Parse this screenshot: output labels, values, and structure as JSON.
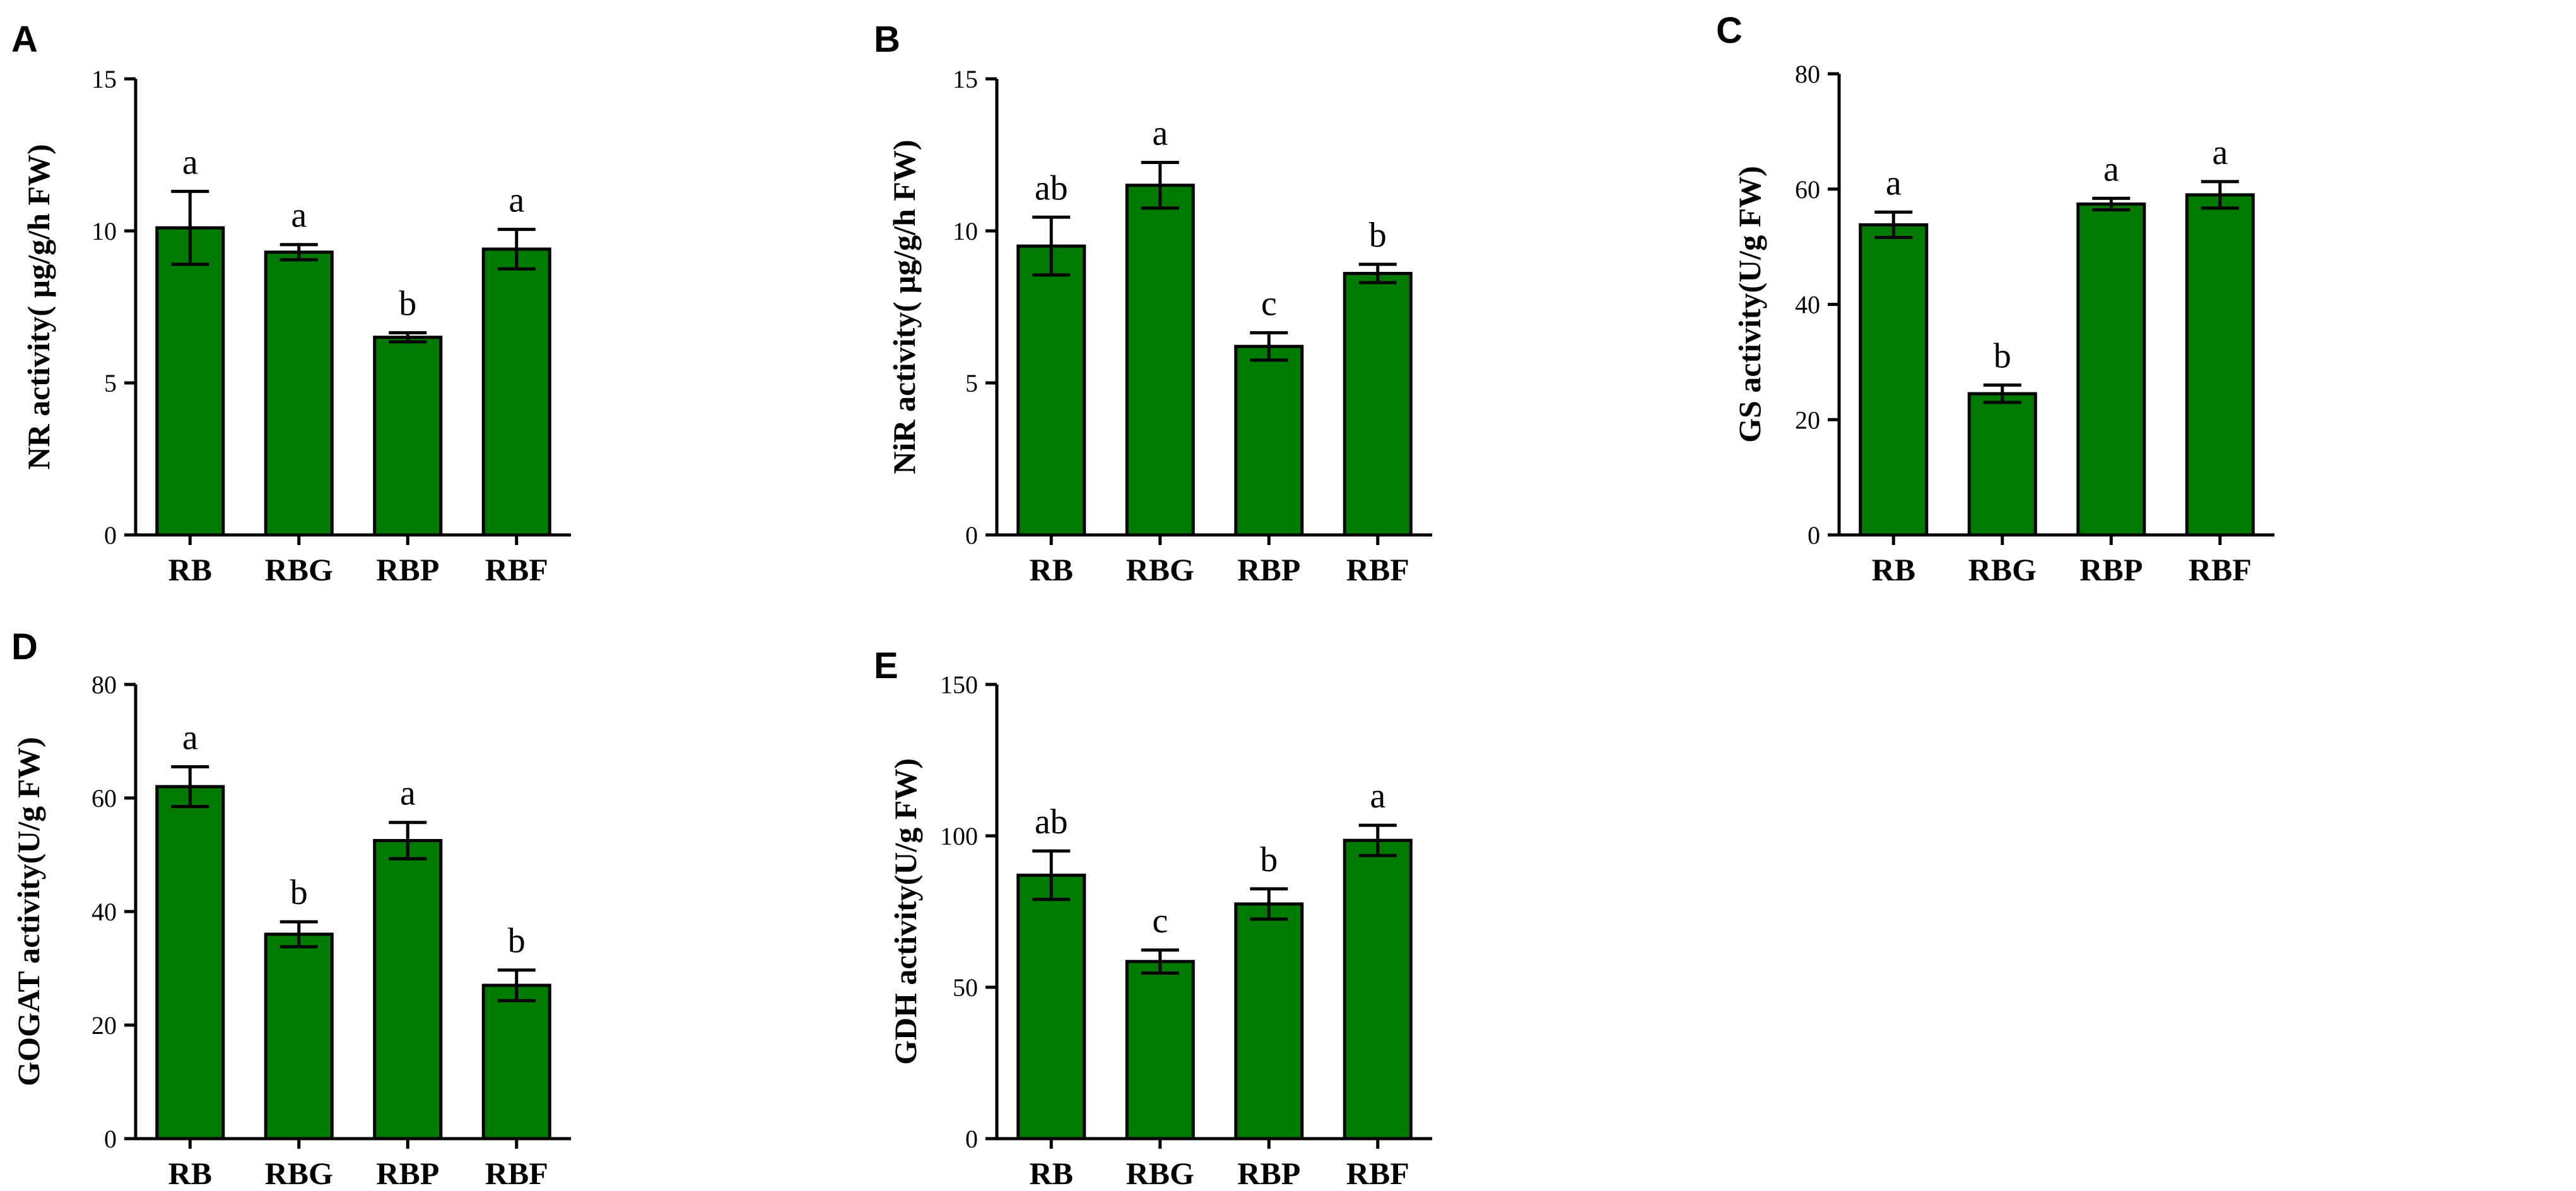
{
  "chart_data": [
    {
      "panel": "A",
      "type": "bar",
      "categories": [
        "RB",
        "RBG",
        "RBP",
        "RBF"
      ],
      "values": [
        10.1,
        9.3,
        6.5,
        9.4
      ],
      "errors": [
        1.2,
        0.25,
        0.15,
        0.65
      ],
      "significance": [
        "a",
        "a",
        "b",
        "a"
      ],
      "ylabel": "NR activity( µg/g/h FW)",
      "ylim": [
        0,
        15
      ],
      "yticks": [
        0,
        5,
        10,
        15
      ],
      "color": "#007a00"
    },
    {
      "panel": "B",
      "type": "bar",
      "categories": [
        "RB",
        "RBG",
        "RBP",
        "RBF"
      ],
      "values": [
        9.5,
        11.5,
        6.2,
        8.6
      ],
      "errors": [
        0.95,
        0.75,
        0.45,
        0.3
      ],
      "significance": [
        "ab",
        "a",
        "c",
        "b"
      ],
      "ylabel": "NiR activity( µg/g/h FW)",
      "ylim": [
        0,
        15
      ],
      "yticks": [
        0,
        5,
        10,
        15
      ],
      "color": "#007a00"
    },
    {
      "panel": "C",
      "type": "bar",
      "categories": [
        "RB",
        "RBG",
        "RBP",
        "RBF"
      ],
      "values": [
        53.8,
        24.5,
        57.4,
        59.0
      ],
      "errors": [
        2.2,
        1.5,
        1.0,
        2.3
      ],
      "significance": [
        "a",
        "b",
        "a",
        "a"
      ],
      "ylabel": "GS activity(U/g FW)",
      "ylim": [
        0,
        80
      ],
      "yticks": [
        0,
        20,
        40,
        60,
        80
      ],
      "color": "#007a00"
    },
    {
      "panel": "D",
      "type": "bar",
      "categories": [
        "RB",
        "RBG",
        "RBP",
        "RBF"
      ],
      "values": [
        62.0,
        36.0,
        52.5,
        27.0
      ],
      "errors": [
        3.5,
        2.2,
        3.2,
        2.7
      ],
      "significance": [
        "a",
        "b",
        "a",
        "b"
      ],
      "ylabel": "GOGAT activity(U/g FW)",
      "ylim": [
        0,
        80
      ],
      "yticks": [
        0,
        20,
        40,
        60,
        80
      ],
      "color": "#007a00"
    },
    {
      "panel": "E",
      "type": "bar",
      "categories": [
        "RB",
        "RBG",
        "RBP",
        "RBF"
      ],
      "values": [
        87.0,
        58.5,
        77.5,
        98.5
      ],
      "errors": [
        8.0,
        3.8,
        5.0,
        5.0
      ],
      "significance": [
        "ab",
        "c",
        "b",
        "a"
      ],
      "ylabel": "GDH activity(U/g FW)",
      "ylim": [
        0,
        150
      ],
      "yticks": [
        0,
        50,
        100,
        150
      ],
      "color": "#007a00"
    }
  ]
}
